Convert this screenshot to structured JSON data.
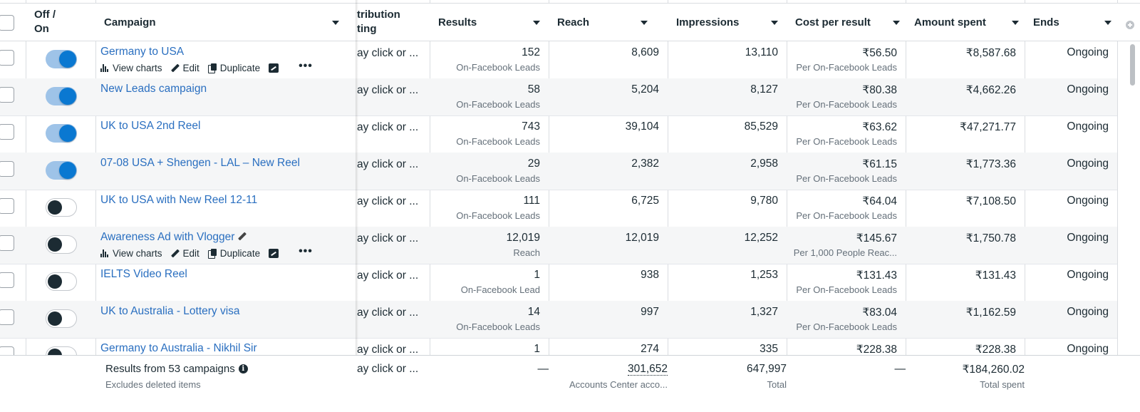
{
  "header": {
    "toggle": "Off / On",
    "campaign": "Campaign",
    "attribution": "tribution",
    "attribution2": "ting",
    "results": "Results",
    "reach": "Reach",
    "impressions": "Impressions",
    "cost_per_result": "Cost per result",
    "amount_spent": "Amount spent",
    "ends": "Ends"
  },
  "row_actions": {
    "view_charts": "View charts",
    "edit": "Edit",
    "duplicate": "Duplicate",
    "more": "•••"
  },
  "rows": [
    {
      "name": "Germany to USA",
      "on": true,
      "attribution": "ay click or ...",
      "results": "152",
      "result_type": "On-Facebook Leads",
      "reach": "8,609",
      "impressions": "13,110",
      "cpr": "₹56.50",
      "cpr_type": "Per On-Facebook Leads",
      "spent": "₹8,587.68",
      "ends": "Ongoing"
    },
    {
      "name": "New Leads campaign",
      "on": true,
      "attribution": "ay click or ...",
      "results": "58",
      "result_type": "On-Facebook Leads",
      "reach": "5,204",
      "impressions": "8,127",
      "cpr": "₹80.38",
      "cpr_type": "Per On-Facebook Leads",
      "spent": "₹4,662.26",
      "ends": "Ongoing"
    },
    {
      "name": "UK to USA 2nd Reel",
      "on": true,
      "attribution": "ay click or ...",
      "results": "743",
      "result_type": "On-Facebook Leads",
      "reach": "39,104",
      "impressions": "85,529",
      "cpr": "₹63.62",
      "cpr_type": "Per On-Facebook Leads",
      "spent": "₹47,271.77",
      "ends": "Ongoing"
    },
    {
      "name": "07-08 USA + Shengen - LAL – New Reel",
      "on": true,
      "attribution": "ay click or ...",
      "results": "29",
      "result_type": "On-Facebook Leads",
      "reach": "2,382",
      "impressions": "2,958",
      "cpr": "₹61.15",
      "cpr_type": "Per On-Facebook Leads",
      "spent": "₹1,773.36",
      "ends": "Ongoing"
    },
    {
      "name": "UK to USA with New Reel 12-11",
      "on": false,
      "attribution": "ay click or ...",
      "results": "111",
      "result_type": "On-Facebook Leads",
      "reach": "6,725",
      "impressions": "9,780",
      "cpr": "₹64.04",
      "cpr_type": "Per On-Facebook Leads",
      "spent": "₹7,108.50",
      "ends": "Ongoing"
    },
    {
      "name": "Awareness Ad with Vlogger",
      "on": false,
      "attribution": "ay click or ...",
      "results": "12,019",
      "result_type": "Reach",
      "reach": "12,019",
      "impressions": "12,252",
      "cpr": "₹145.67",
      "cpr_type": "Per 1,000 People Reac...",
      "spent": "₹1,750.78",
      "ends": "Ongoing"
    },
    {
      "name": "IELTS Video Reel",
      "on": false,
      "attribution": "ay click or ...",
      "results": "1",
      "result_type": "On-Facebook Lead",
      "reach": "938",
      "impressions": "1,253",
      "cpr": "₹131.43",
      "cpr_type": "Per On-Facebook Leads",
      "spent": "₹131.43",
      "ends": "Ongoing"
    },
    {
      "name": "UK to Australia - Lottery visa",
      "on": false,
      "attribution": "ay click or ...",
      "results": "14",
      "result_type": "On-Facebook Leads",
      "reach": "997",
      "impressions": "1,327",
      "cpr": "₹83.04",
      "cpr_type": "Per On-Facebook Leads",
      "spent": "₹1,162.59",
      "ends": "Ongoing"
    },
    {
      "name": "Germany to Australia - Nikhil Sir",
      "on": false,
      "attribution": "ay click or ...",
      "results": "1",
      "result_type": "",
      "reach": "274",
      "impressions": "335",
      "cpr": "₹228.38",
      "cpr_type": "",
      "spent": "₹228.38",
      "ends": "Ongoing"
    }
  ],
  "footer": {
    "title": "Results from 53 campaigns",
    "subtitle": "Excludes deleted items",
    "attribution": "ay click or ...",
    "results": "—",
    "reach": "301,652",
    "reach_label": "Accounts Center acco...",
    "impressions": "647,997",
    "impressions_label": "Total",
    "cpr": "—",
    "spent": "₹184,260.02",
    "spent_label": "Total spent"
  },
  "colors": {
    "link": "#2a6fc0",
    "toggle_on": "#0a78d1",
    "alt_row": "#f5f6f7"
  }
}
